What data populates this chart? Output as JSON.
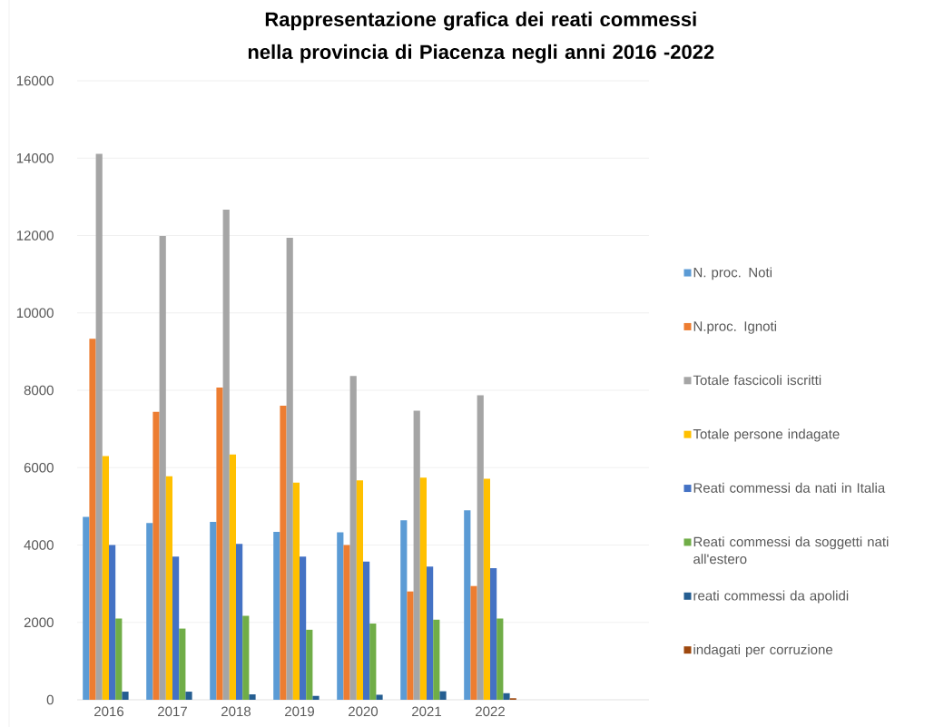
{
  "chart_data": {
    "type": "bar",
    "title": "Rappresentazione grafica dei reati commessi nella provincia di Piacenza negli anni 2016 -2022",
    "categories": [
      "2016",
      "2017",
      "2018",
      "2019",
      "2020",
      "2021",
      "2022",
      null,
      null
    ],
    "series": [
      {
        "name": "N. proc. Noti",
        "color": "#5b9bd5",
        "values": [
          4730,
          4570,
          4600,
          4340,
          4330,
          4640,
          4900,
          null,
          null
        ]
      },
      {
        "name": "N.proc. Ignoti",
        "color": "#ed7d31",
        "values": [
          9330,
          7440,
          8070,
          7600,
          4000,
          2800,
          2940,
          null,
          null
        ]
      },
      {
        "name": "Totale fascicoli iscritti",
        "color": "#a5a5a5",
        "values": [
          14110,
          11990,
          12670,
          11940,
          8370,
          7470,
          7870,
          null,
          null
        ]
      },
      {
        "name": "Totale persone indagate",
        "color": "#ffc000",
        "values": [
          6300,
          5780,
          6340,
          5610,
          5670,
          5740,
          5710,
          null,
          null
        ]
      },
      {
        "name": "Reati commessi da nati in Italia",
        "color": "#4472c4",
        "values": [
          4000,
          3700,
          4030,
          3700,
          3570,
          3440,
          3400,
          null,
          null
        ]
      },
      {
        "name": "Reati commessi da soggetti nati all'estero",
        "color": "#70ad47",
        "values": [
          2100,
          1840,
          2170,
          1810,
          1970,
          2070,
          2100,
          null,
          null
        ]
      },
      {
        "name": "reati commessi da apolidi",
        "color": "#255e91",
        "values": [
          210,
          210,
          140,
          100,
          130,
          220,
          170,
          null,
          null
        ]
      },
      {
        "name": "indagati per corruzione",
        "color": "#9e480e",
        "values": [
          null,
          null,
          null,
          null,
          null,
          null,
          40,
          null,
          null
        ]
      }
    ],
    "ylim": [
      0,
      16000
    ],
    "yticks": [
      0,
      2000,
      4000,
      6000,
      8000,
      10000,
      12000,
      14000,
      16000
    ],
    "grid": "y",
    "legend": "right"
  }
}
